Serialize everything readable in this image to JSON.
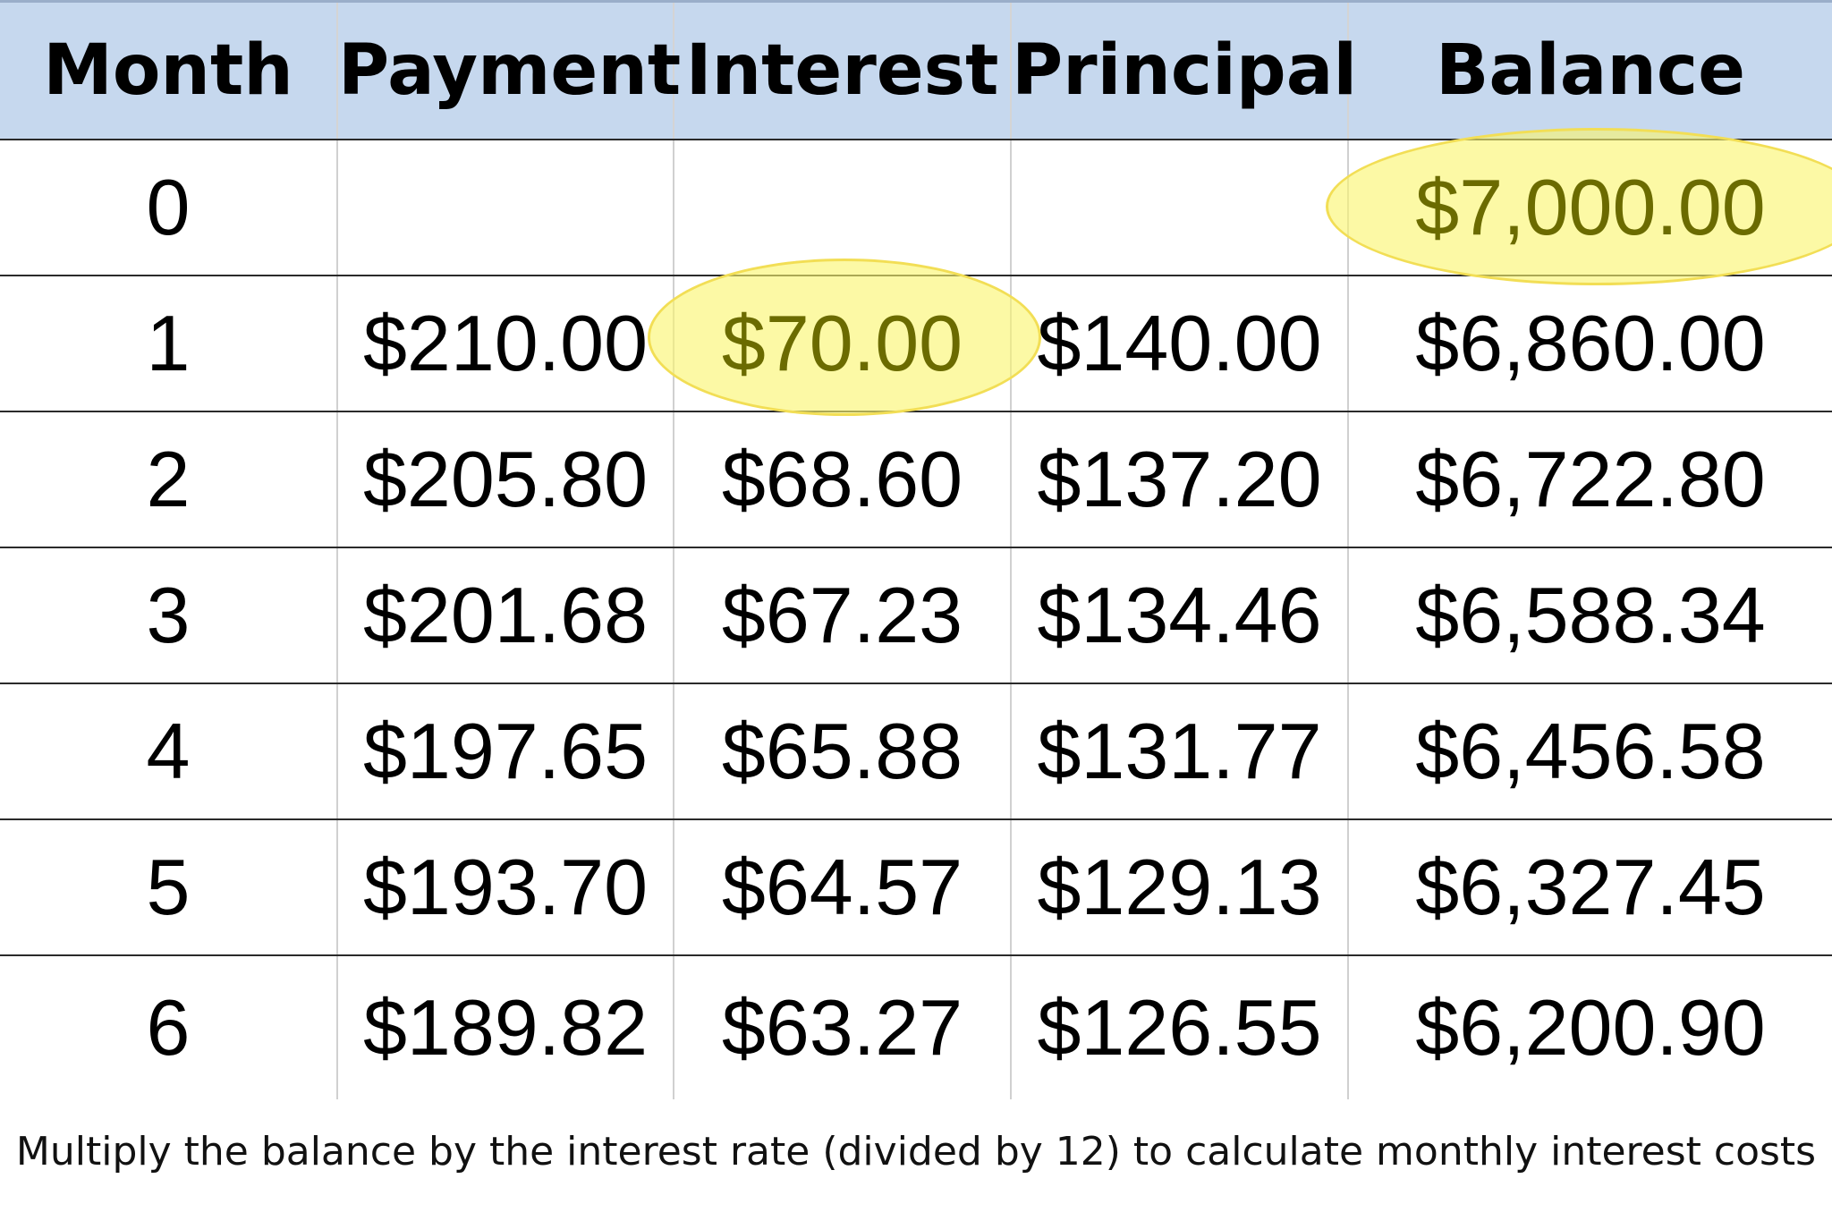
{
  "table": {
    "headers": [
      "Month",
      "Payment",
      "Interest",
      "Principal",
      "Balance"
    ],
    "rows": [
      [
        "0",
        "",
        "",
        "",
        "$7,000.00"
      ],
      [
        "1",
        "$210.00",
        "$70.00",
        "$140.00",
        "$6,860.00"
      ],
      [
        "2",
        "$205.80",
        "$68.60",
        "$137.20",
        "$6,722.80"
      ],
      [
        "3",
        "$201.68",
        "$67.23",
        "$134.46",
        "$6,588.34"
      ],
      [
        "4",
        "$197.65",
        "$65.88",
        "$131.77",
        "$6,456.58"
      ],
      [
        "5",
        "$193.70",
        "$64.57",
        "$129.13",
        "$6,327.45"
      ],
      [
        "6",
        "$189.82",
        "$63.27",
        "$126.55",
        "$6,200.90"
      ]
    ],
    "highlighted_cells": [
      {
        "row": 0,
        "column": "Balance",
        "value": "$7,000.00"
      },
      {
        "row": 1,
        "column": "Interest",
        "value": "$70.00"
      }
    ]
  },
  "caption": "Multiply the balance by the interest rate (divided by 12) to calculate monthly interest costs",
  "colors": {
    "header_background": "#c6d8ee",
    "highlight_fill": "#f8f36e",
    "highlight_text": "#6b6b00"
  }
}
